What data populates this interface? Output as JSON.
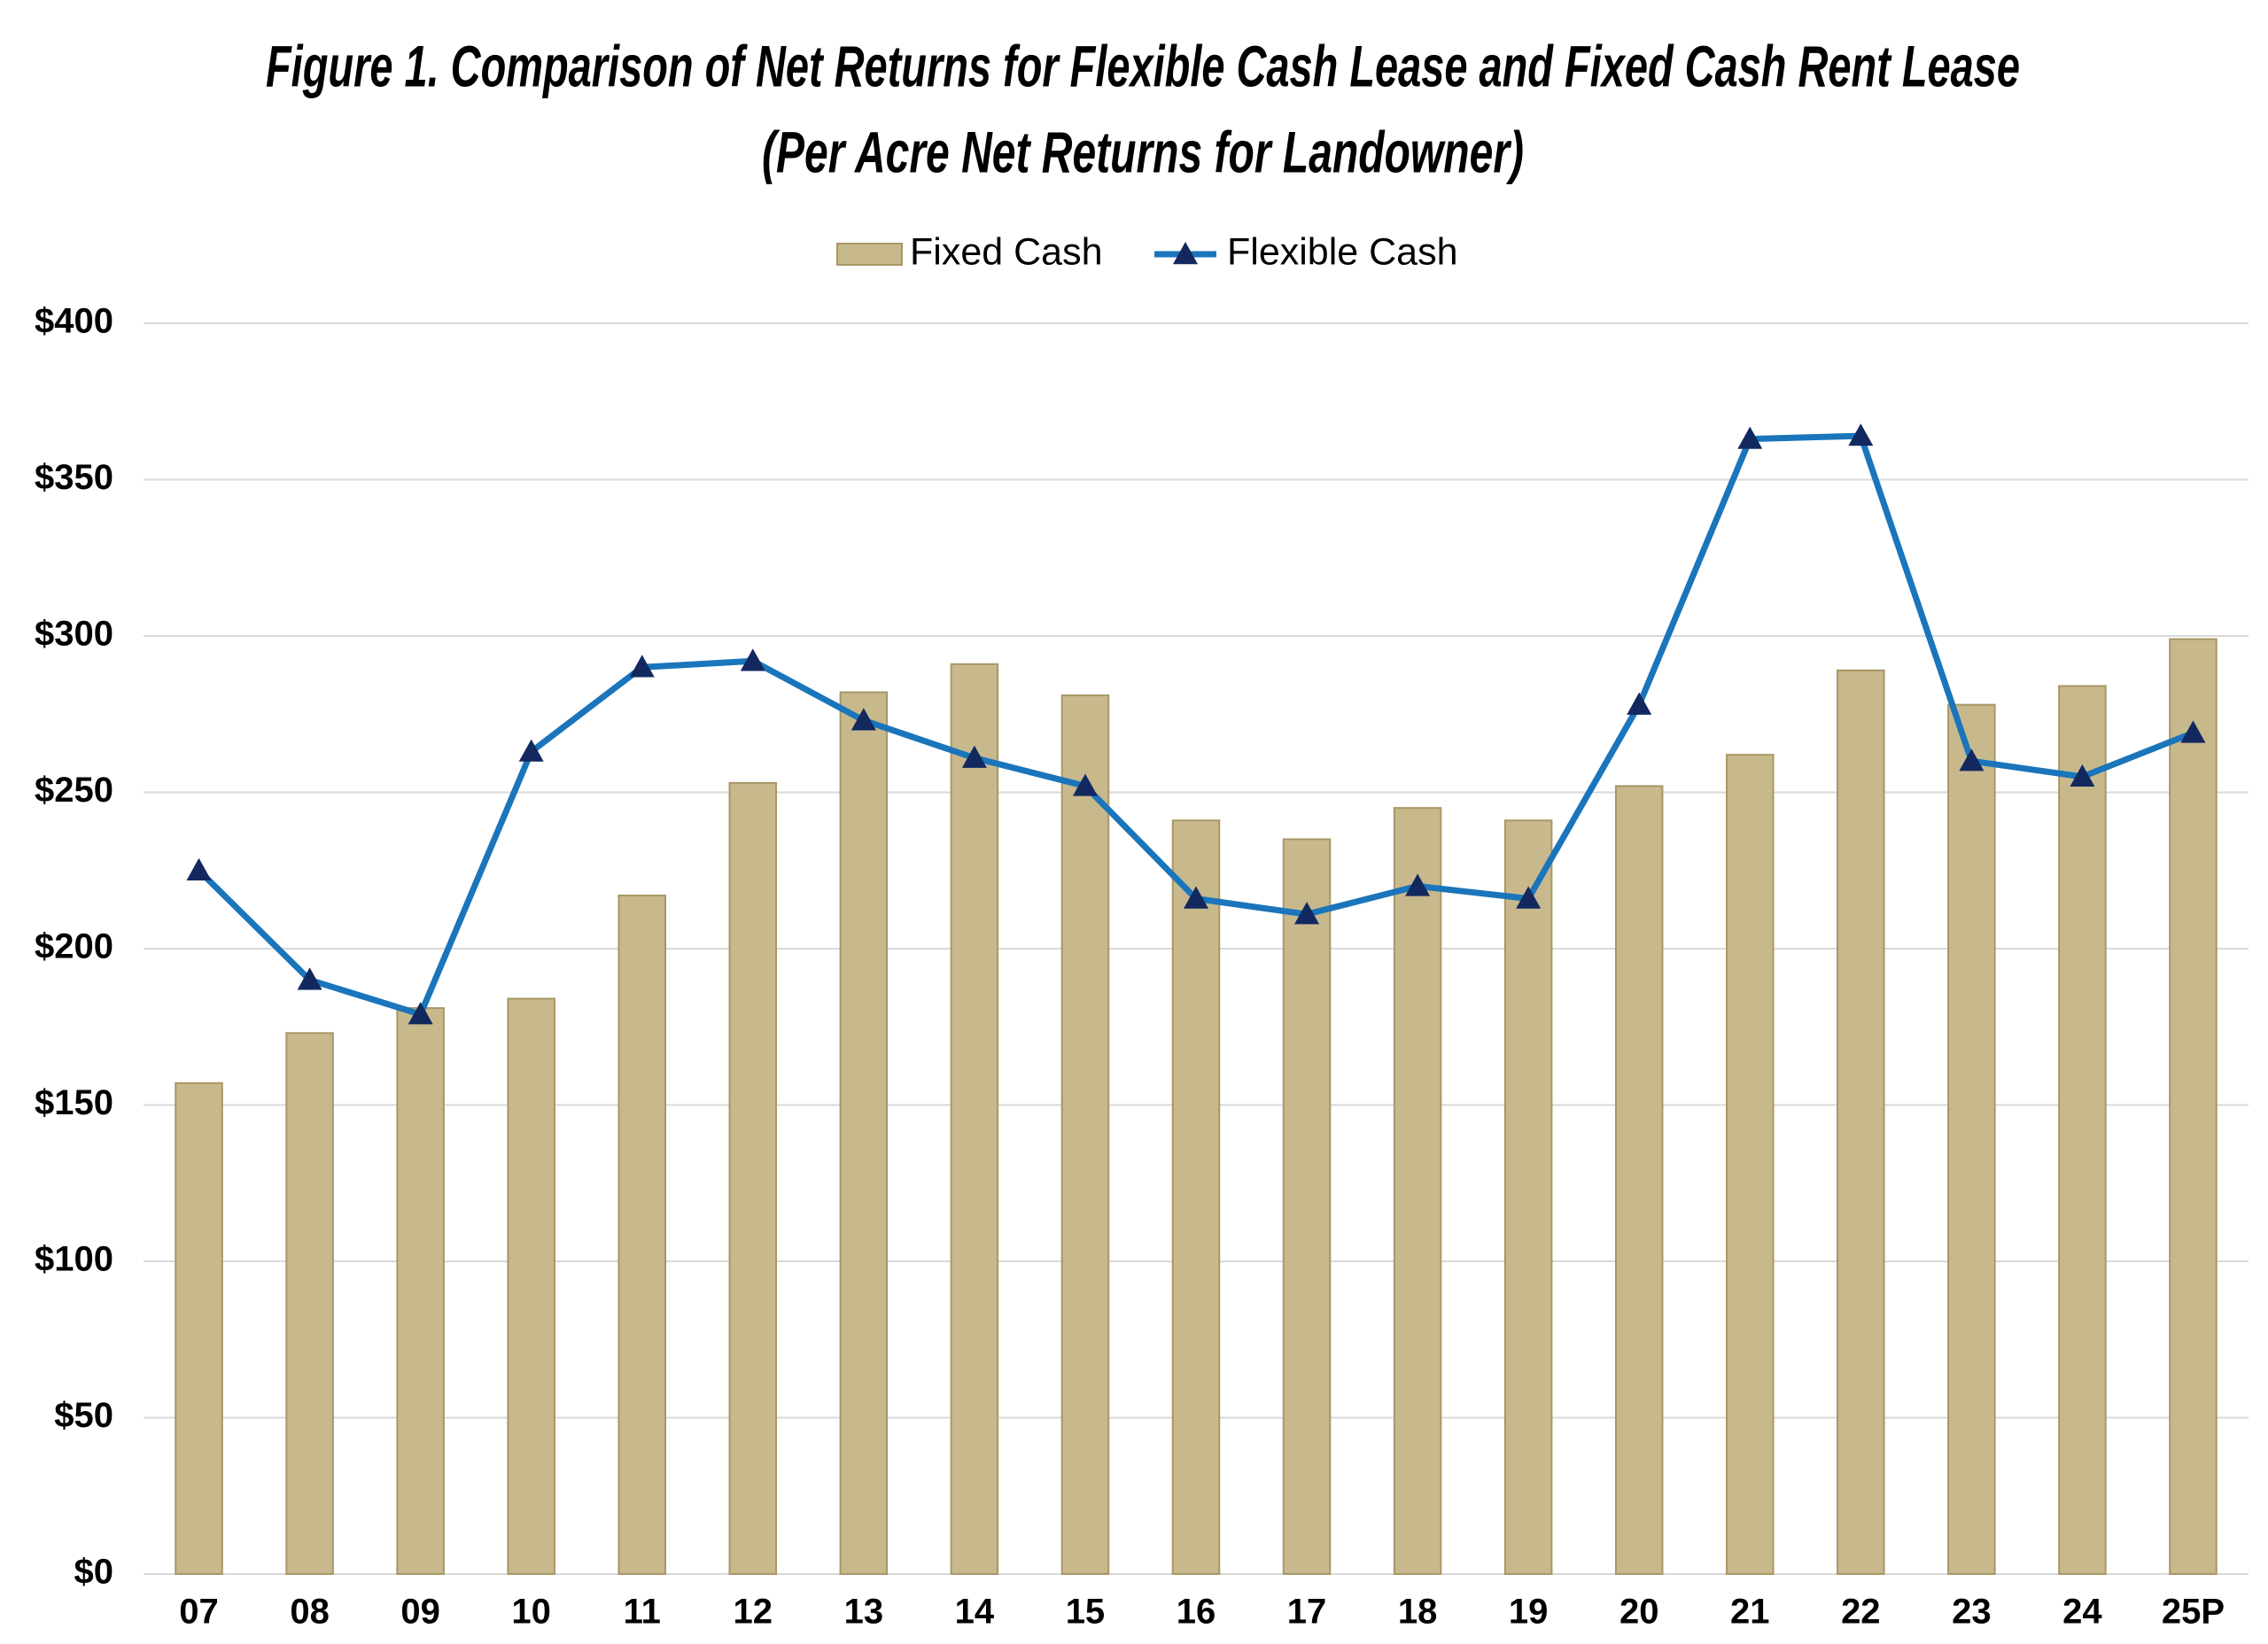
{
  "chart_data": {
    "type": "bar-line",
    "title": "Figure 1. Comparison of Net Returns for Flexible Cash Lease and Fixed Cash Rent Lease",
    "subtitle": "(Per Acre Net Returns for Landowner)",
    "categories": [
      "07",
      "08",
      "09",
      "10",
      "11",
      "12",
      "13",
      "14",
      "15",
      "16",
      "17",
      "18",
      "19",
      "20",
      "21",
      "22",
      "23",
      "24",
      "25P"
    ],
    "series": [
      {
        "name": "Fixed Cash",
        "type": "bar",
        "color": "#c8b98d",
        "values": [
          157,
          173,
          181,
          184,
          217,
          253,
          282,
          291,
          281,
          241,
          235,
          245,
          241,
          252,
          262,
          289,
          278,
          284,
          299
        ]
      },
      {
        "name": "Flexible Cash",
        "type": "line",
        "color": "#1a75bb",
        "marker_color": "#12285f",
        "values": [
          225,
          190,
          179,
          263,
          290,
          292,
          273,
          261,
          252,
          216,
          211,
          220,
          216,
          278,
          363,
          364,
          260,
          255,
          269
        ]
      }
    ],
    "ylim": [
      0,
      400
    ],
    "yticks": [
      {
        "value": 0,
        "label": "$0"
      },
      {
        "value": 50,
        "label": "$50"
      },
      {
        "value": 100,
        "label": "$100"
      },
      {
        "value": 150,
        "label": "$150"
      },
      {
        "value": 200,
        "label": "$200"
      },
      {
        "value": 250,
        "label": "$250"
      },
      {
        "value": 300,
        "label": "$300"
      },
      {
        "value": 350,
        "label": "$350"
      },
      {
        "value": 400,
        "label": "$400"
      }
    ],
    "grid": true,
    "legend": "top"
  }
}
